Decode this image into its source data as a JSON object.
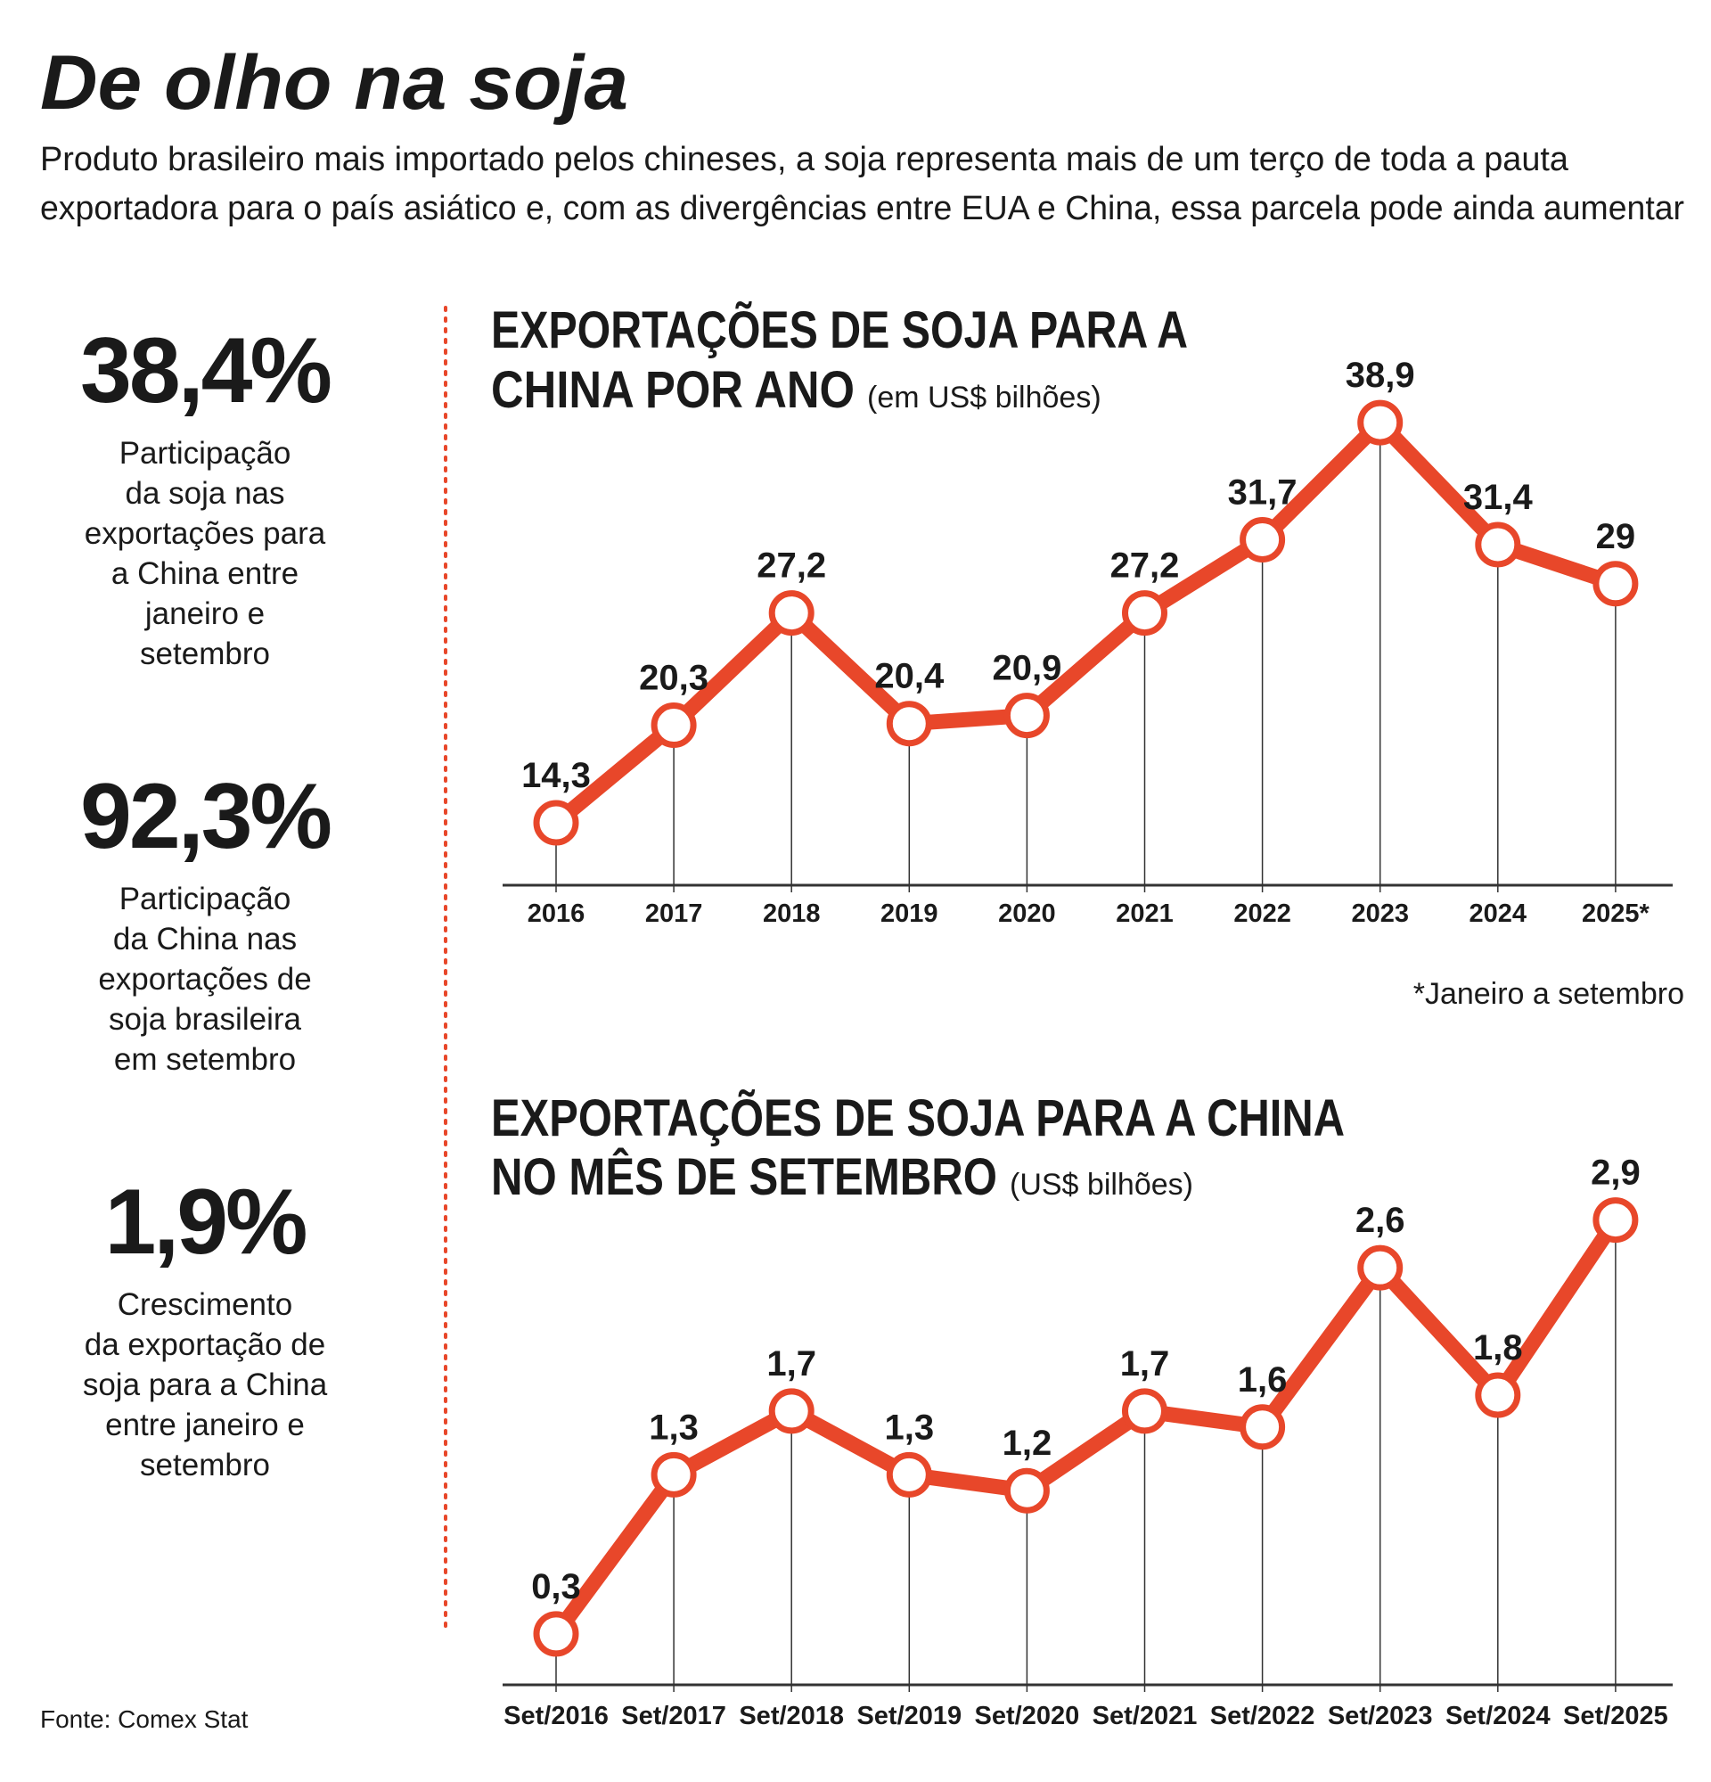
{
  "title": "De olho na soja",
  "subtitle": [
    "Produto brasileiro mais importado pelos chineses, a soja representa mais de um terço de toda a pauta",
    "exportadora para o país asiático e, com as divergências entre EUA e China, essa parcela pode ainda aumentar"
  ],
  "stats": [
    {
      "value": "38,4%",
      "text": [
        "Participação",
        "da soja nas",
        "exportações para",
        "a China entre",
        "janeiro e",
        "setembro"
      ]
    },
    {
      "value": "92,3%",
      "text": [
        "Participação",
        "da China nas",
        "exportações de",
        "soja brasileira",
        "em setembro"
      ]
    },
    {
      "value": "1,9%",
      "text": [
        "Crescimento",
        "da exportação de",
        "soja para a China",
        "entre janeiro e",
        "setembro"
      ]
    }
  ],
  "source": "Fonte: Comex Stat",
  "chart_data": [
    {
      "type": "line",
      "title": [
        "EXPORTAÇÕES DE SOJA PARA A",
        "CHINA POR ANO"
      ],
      "unit": "(em US$ bilhões)",
      "categories": [
        "2016",
        "2017",
        "2018",
        "2019",
        "2020",
        "2021",
        "2022",
        "2023",
        "2024",
        "2025*"
      ],
      "values": [
        14.3,
        20.3,
        27.2,
        20.4,
        20.9,
        27.2,
        31.7,
        38.9,
        31.4,
        29
      ],
      "value_labels": [
        "14,3",
        "20,3",
        "27,2",
        "20,4",
        "20,9",
        "27,2",
        "31,7",
        "38,9",
        "31,4",
        "29"
      ],
      "color": "#e8472a",
      "ylim": [
        10,
        40
      ],
      "footnote": "*Janeiro a setembro"
    },
    {
      "type": "line",
      "title": [
        "EXPORTAÇÕES DE SOJA PARA A CHINA",
        "NO MÊS DE SETEMBRO"
      ],
      "unit": "(US$ bilhões)",
      "categories": [
        "Set/2016",
        "Set/2017",
        "Set/2018",
        "Set/2019",
        "Set/2020",
        "Set/2021",
        "Set/2022",
        "Set/2023",
        "Set/2024",
        "Set/2025"
      ],
      "values": [
        0.3,
        1.3,
        1.7,
        1.3,
        1.2,
        1.7,
        1.6,
        2.6,
        1.8,
        2.9
      ],
      "value_labels": [
        "0,3",
        "1,3",
        "1,7",
        "1,3",
        "1,2",
        "1,7",
        "1,6",
        "2,6",
        "1,8",
        "2,9"
      ],
      "color": "#e8472a",
      "ylim": [
        0,
        3.2
      ]
    }
  ]
}
